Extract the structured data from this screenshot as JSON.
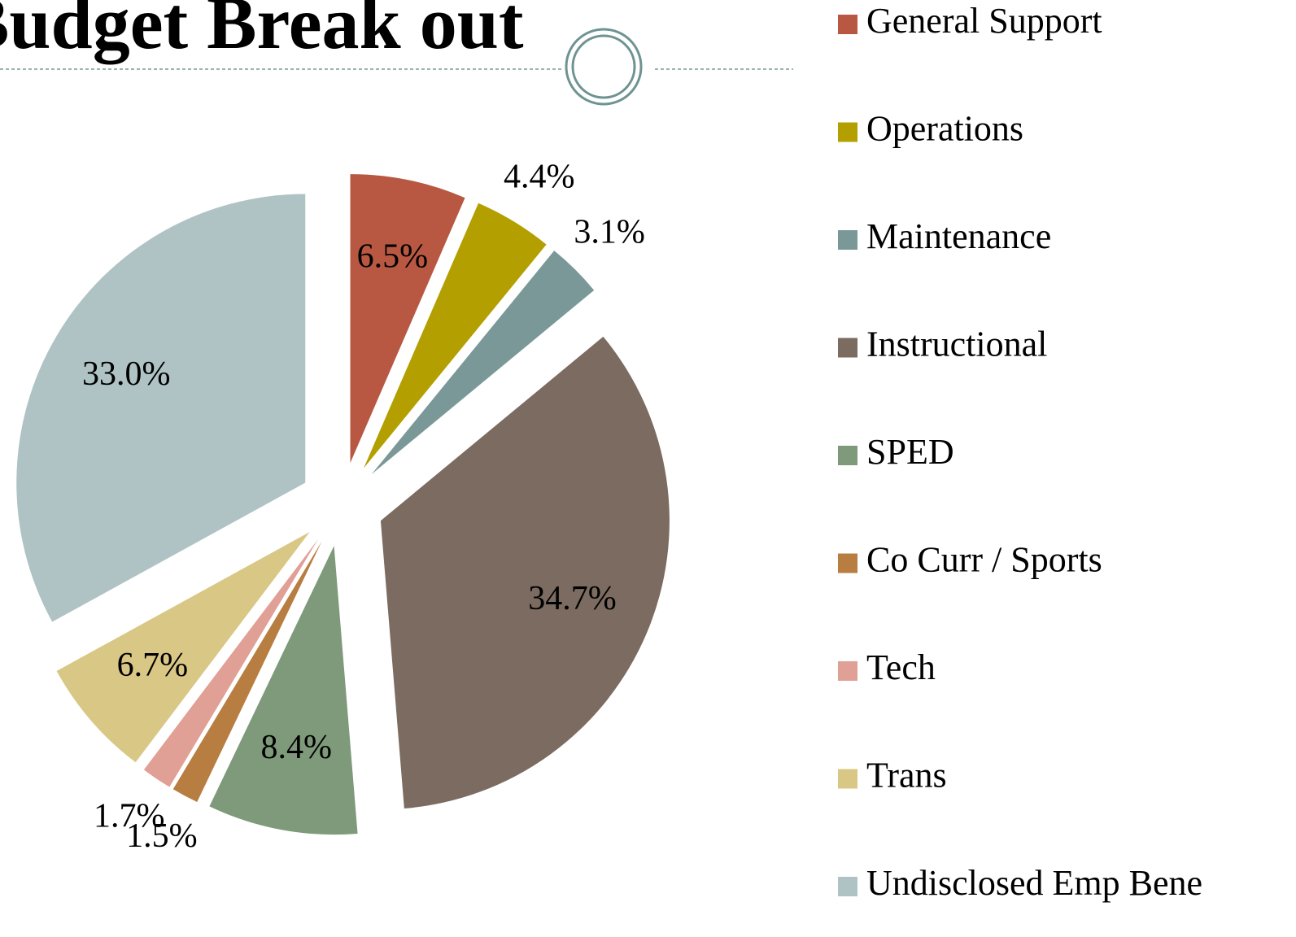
{
  "chart_data": {
    "type": "pie",
    "title": "Budget Break out",
    "categories": [
      "General Support",
      "Operations",
      "Maintenance",
      "Instructional",
      "SPED",
      "Co Curr / Sports",
      "Tech",
      "Trans",
      "Undisclosed Emp Bene"
    ],
    "values": [
      6.5,
      4.4,
      3.1,
      34.7,
      8.4,
      1.5,
      1.7,
      6.7,
      33.0
    ],
    "value_labels": [
      "6.5%",
      "4.4%",
      "3.1%",
      "34.7%",
      "8.4%",
      "1.5%",
      "1.7%",
      "6.7%",
      "33.0%"
    ],
    "colors": [
      "#b85842",
      "#b3a000",
      "#7b9899",
      "#7b6b60",
      "#7f9a7b",
      "#b87d40",
      "#e0a096",
      "#d9c785",
      "#b0c3c4"
    ],
    "legend": "right"
  }
}
